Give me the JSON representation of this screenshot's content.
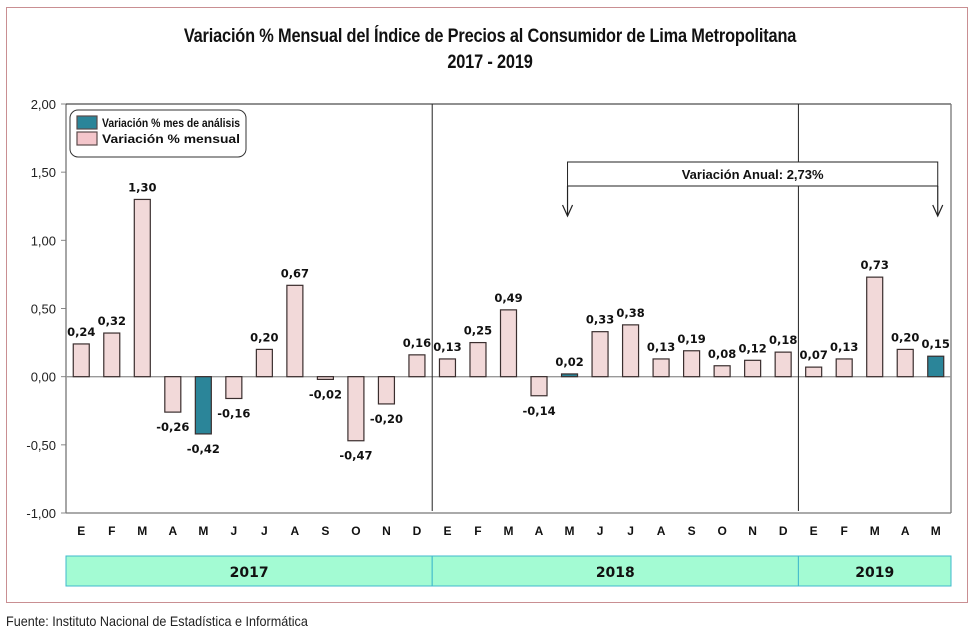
{
  "chart_data": {
    "type": "bar",
    "title": "Variación % Mensual del Índice de Precios al Consumidor de Lima Metropolitana",
    "subtitle": "2017 - 2019",
    "xlabel": "",
    "ylabel": "",
    "ylim": [
      -1.0,
      2.0
    ],
    "yticks": [
      2.0,
      1.5,
      1.0,
      0.5,
      0.0,
      -0.5,
      -1.0
    ],
    "ytick_labels": [
      "2,00",
      "1,50",
      "1,00",
      "0,50",
      "0,00",
      "-0,50",
      "-1,00"
    ],
    "grid": false,
    "legend_position": "top-left",
    "legend": [
      {
        "name": "Variación % mes de análisis",
        "color": "#2b8599"
      },
      {
        "name": "Variación % mensual",
        "color": "#f2d9d9"
      }
    ],
    "categories": [
      "E",
      "F",
      "M",
      "A",
      "M",
      "J",
      "J",
      "A",
      "S",
      "O",
      "N",
      "D",
      "E",
      "F",
      "M",
      "A",
      "M",
      "J",
      "J",
      "A",
      "S",
      "O",
      "N",
      "D",
      "E",
      "F",
      "M",
      "A",
      "M"
    ],
    "values": [
      0.24,
      0.32,
      1.3,
      -0.26,
      -0.42,
      -0.16,
      0.2,
      0.67,
      -0.02,
      -0.47,
      -0.2,
      0.16,
      0.13,
      0.25,
      0.49,
      -0.14,
      0.02,
      0.33,
      0.38,
      0.13,
      0.19,
      0.08,
      0.12,
      0.18,
      0.07,
      0.13,
      0.73,
      0.2,
      0.15
    ],
    "value_labels": [
      "0,24",
      "0,32",
      "1,30",
      "-0,26",
      "-0,42",
      "-0,16",
      "0,20",
      "0,67",
      "-0,02",
      "-0,47",
      "-0,20",
      "0,16",
      "0,13",
      "0,25",
      "0,49",
      "-0,14",
      "0,02",
      "0,33",
      "0,38",
      "0,13",
      "0,19",
      "0,08",
      "0,12",
      "0,18",
      "0,07",
      "0,13",
      "0,73",
      "0,20",
      "0,15"
    ],
    "highlighted": [
      4,
      16,
      28
    ],
    "year_groups": [
      {
        "label": "2017",
        "start": 0,
        "count": 12
      },
      {
        "label": "2018",
        "start": 12,
        "count": 12
      },
      {
        "label": "2019",
        "start": 24,
        "count": 5
      }
    ],
    "annotation": {
      "text": "Variación Anual: 2,73%",
      "from_index": 16,
      "to_index": 28
    }
  },
  "colors": {
    "highlight": "#2b8599",
    "normal": "#f2d9d9",
    "year_band": "#a3fbd3",
    "year_band_border": "#3fb8cc",
    "frame": "#c98f92"
  },
  "footer": "Fuente: Instituto Nacional de Estadística e Informática"
}
